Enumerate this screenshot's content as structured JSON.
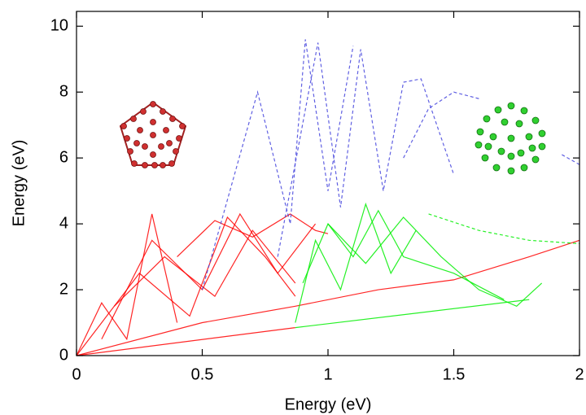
{
  "chart_data": {
    "type": "line",
    "x_label": "Energy (eV)",
    "y_label": "Energy (eV)",
    "xlim": [
      0,
      2
    ],
    "ylim": [
      0,
      10.45
    ],
    "xticks": [
      0,
      0.5,
      1,
      1.5,
      2
    ],
    "yticks": [
      0,
      2,
      4,
      6,
      8,
      10
    ],
    "grid": false,
    "series": [
      {
        "color": "#ff0000",
        "dashed": false,
        "x": [
          0,
          0.1,
          0.2,
          0.3,
          0.4
        ],
        "values": [
          0,
          1.6,
          0.5,
          4.3,
          1.0
        ]
      },
      {
        "color": "#ff0000",
        "dashed": false,
        "x": [
          0,
          0.25,
          0.45,
          0.6,
          0.75,
          0.87
        ],
        "values": [
          0,
          2.5,
          1.2,
          4.2,
          3.0,
          1.8
        ]
      },
      {
        "color": "#ff0000",
        "dashed": false,
        "x": [
          0.1,
          0.3,
          0.5,
          0.65,
          0.8,
          0.95
        ],
        "values": [
          0.5,
          3.5,
          2.0,
          4.3,
          2.5,
          4.0
        ]
      },
      {
        "color": "#ff0000",
        "dashed": false,
        "x": [
          0,
          0.5,
          0.87,
          1.2,
          1.5,
          1.8,
          2.0
        ],
        "values": [
          0,
          1.0,
          1.5,
          2.0,
          2.3,
          3.0,
          3.5
        ]
      },
      {
        "color": "#ff0000",
        "dashed": false,
        "x": [
          0.4,
          0.55,
          0.7,
          0.85,
          0.95,
          1.0
        ],
        "values": [
          3.0,
          4.1,
          3.6,
          4.3,
          3.8,
          3.7
        ]
      },
      {
        "color": "#ff0000",
        "dashed": false,
        "x": [
          0.15,
          0.35,
          0.55,
          0.7,
          0.87
        ],
        "values": [
          1.5,
          3.0,
          1.8,
          3.8,
          2.2
        ]
      },
      {
        "color": "#ff0000",
        "dashed": false,
        "x": [
          0,
          0.87
        ],
        "values": [
          0,
          0.85
        ]
      },
      {
        "color": "#00ee00",
        "dashed": false,
        "x": [
          0.87,
          0.95,
          1.05,
          1.15,
          1.25,
          1.35
        ],
        "values": [
          1.0,
          3.5,
          2.0,
          4.6,
          2.5,
          3.8
        ]
      },
      {
        "color": "#00ee00",
        "dashed": false,
        "x": [
          0.9,
          1.0,
          1.1,
          1.2,
          1.3,
          1.5,
          1.7
        ],
        "values": [
          2.2,
          4.0,
          3.0,
          4.4,
          3.0,
          2.5,
          1.7
        ]
      },
      {
        "color": "#00ee00",
        "dashed": false,
        "x": [
          1.0,
          1.15,
          1.3,
          1.45,
          1.6,
          1.75,
          1.85
        ],
        "values": [
          4.0,
          2.8,
          4.2,
          3.0,
          2.0,
          1.5,
          2.2
        ]
      },
      {
        "color": "#00ee00",
        "dashed": false,
        "x": [
          0.87,
          1.8
        ],
        "values": [
          0.85,
          1.7
        ]
      },
      {
        "color": "#00ee00",
        "dashed": true,
        "x": [
          1.4,
          1.6,
          1.8,
          2.0
        ],
        "values": [
          4.3,
          3.8,
          3.5,
          3.4
        ]
      },
      {
        "color": "#4444dd",
        "dashed": true,
        "x": [
          0.5,
          0.72,
          0.85,
          0.91,
          1.0,
          1.1
        ],
        "values": [
          2.0,
          8.0,
          4.0,
          9.6,
          5.0,
          9.4
        ]
      },
      {
        "color": "#4444dd",
        "dashed": true,
        "x": [
          0.8,
          0.96,
          1.05,
          1.13,
          1.22,
          1.3,
          1.37,
          1.5
        ],
        "values": [
          3.0,
          9.5,
          4.5,
          9.3,
          5.0,
          8.3,
          8.4,
          5.5
        ]
      },
      {
        "color": "#4444dd",
        "dashed": true,
        "x": [
          1.3,
          1.4,
          1.5,
          1.6
        ],
        "values": [
          6.0,
          7.5,
          8.0,
          7.8
        ]
      },
      {
        "color": "#4444dd",
        "dashed": true,
        "x": [
          1.93,
          2.0
        ],
        "values": [
          6.1,
          5.8
        ]
      }
    ]
  }
}
